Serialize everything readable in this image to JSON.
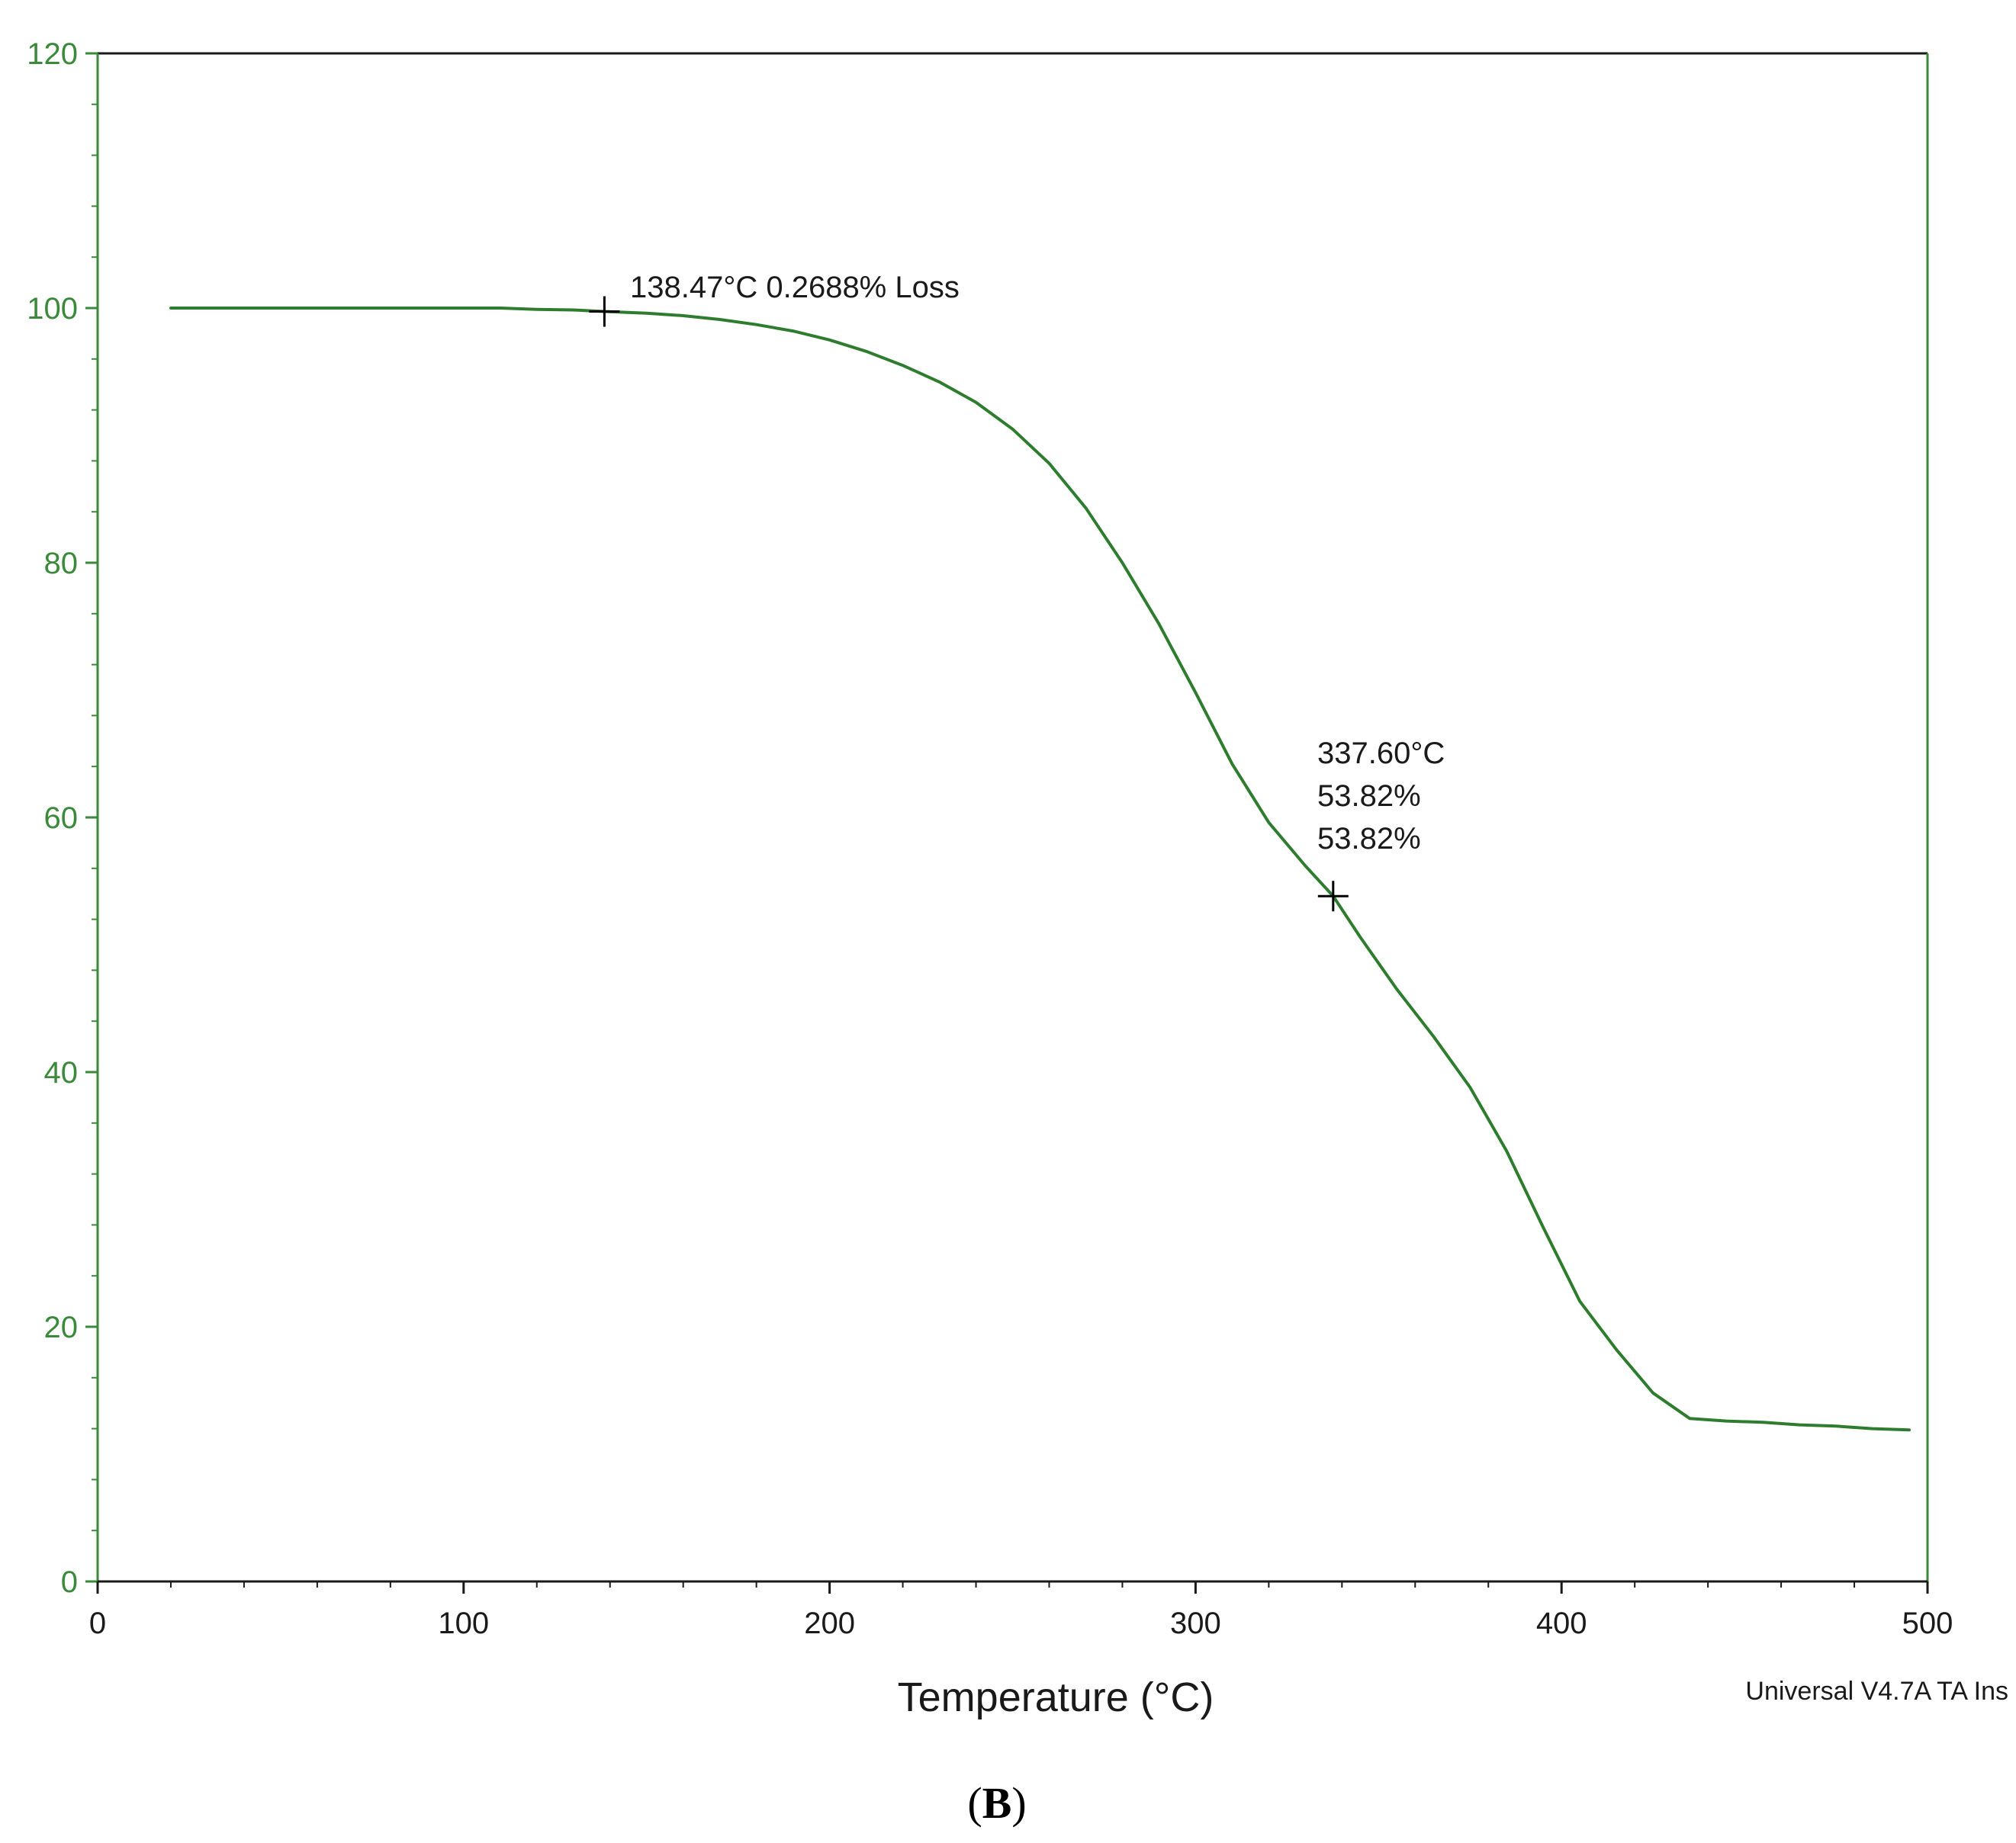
{
  "chart_data": {
    "type": "line",
    "title": "",
    "xlabel": "Temperature (°C)",
    "ylabel": "",
    "xlim": [
      0,
      500
    ],
    "ylim": [
      0,
      120
    ],
    "xticks": [
      0,
      100,
      200,
      300,
      400,
      500
    ],
    "yticks": [
      0,
      20,
      40,
      60,
      80,
      100,
      120
    ],
    "xtick_labels": [
      "0",
      "100",
      "200",
      "300",
      "400",
      "500"
    ],
    "ytick_labels": [
      "0",
      "20",
      "40",
      "60",
      "80",
      "100",
      "120"
    ],
    "grid": false,
    "legend": "none",
    "colors": {
      "series": "#2e7d2e",
      "y_axis": "#3a8a3a",
      "x_axis": "#1a1a1a",
      "marker": "#000000"
    },
    "series": [
      {
        "x": [
          20,
          50,
          80,
          110,
          120,
          130,
          138.47,
          150,
          160,
          170,
          180,
          190,
          200,
          210,
          220,
          230,
          240,
          250,
          260,
          270,
          280,
          290,
          300,
          310,
          320,
          330,
          337.6,
          345,
          355,
          365,
          375,
          385,
          395,
          405,
          415,
          425,
          435,
          445,
          455,
          465,
          475,
          485,
          495
        ],
        "y": [
          100,
          100,
          100,
          100,
          99.9,
          99.85,
          99.73,
          99.6,
          99.4,
          99.1,
          98.7,
          98.2,
          97.5,
          96.6,
          95.5,
          94.2,
          92.6,
          90.5,
          87.8,
          84.3,
          80.0,
          75.2,
          69.8,
          64.2,
          59.6,
          56.2,
          53.82,
          50.6,
          46.5,
          42.8,
          38.8,
          33.8,
          27.8,
          22.0,
          18.2,
          14.8,
          12.8,
          12.6,
          12.5,
          12.3,
          12.2,
          12.0,
          11.9
        ]
      }
    ],
    "markers": [
      {
        "x": 138.47,
        "y": 99.73
      },
      {
        "x": 337.6,
        "y": 53.82
      }
    ],
    "annotations": [
      {
        "lines": [
          "138.47°C 0.2688% Loss"
        ]
      },
      {
        "lines": [
          "337.60°C",
          "53.82%",
          "53.82%"
        ]
      }
    ],
    "footer": "Universal V4.7A TA Ins",
    "panel_label": {
      "open": "(",
      "letter": "B",
      "close": ")"
    }
  }
}
